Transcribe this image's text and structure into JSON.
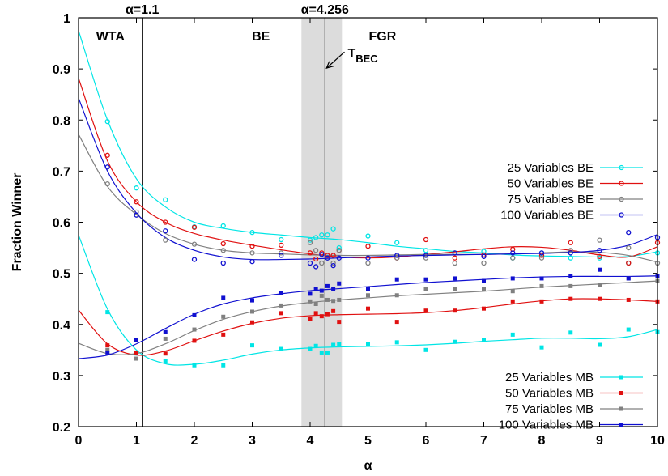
{
  "chart_data": {
    "type": "scatter",
    "xlabel": "α",
    "ylabel": "Fraction Winner",
    "xlim": [
      0,
      10
    ],
    "ylim": [
      0.2,
      1.0
    ],
    "xticks": [
      "0",
      "1",
      "2",
      "3",
      "4",
      "5",
      "6",
      "7",
      "8",
      "9",
      "10"
    ],
    "yticks": [
      "0.2",
      "0.3",
      "0.4",
      "0.5",
      "0.6",
      "0.7",
      "0.8",
      "0.9",
      "1"
    ],
    "grid": false,
    "legend_placement": "right",
    "vlines": [
      {
        "x": 1.1,
        "label": "α=1.1"
      },
      {
        "x": 4.256,
        "label": "α=4.256"
      }
    ],
    "shaded_band": {
      "x": [
        3.85,
        4.55
      ],
      "color": "#dcdcdc"
    },
    "region_labels": [
      {
        "text": "WTA",
        "x": 0.55,
        "y": 0.965
      },
      {
        "text": "BE",
        "x": 3.15,
        "y": 0.965
      },
      {
        "text": "FGR",
        "x": 5.25,
        "y": 0.965
      }
    ],
    "annotation": {
      "text": "T",
      "subscript": "BEC",
      "point_x": 4.256,
      "point_y": 0.9,
      "text_x": 4.65,
      "text_y": 0.93
    },
    "series": [
      {
        "name": "25 Variables BE",
        "color": "#00e5e5",
        "marker": "circle",
        "x": [
          0.5,
          1.0,
          1.5,
          2.0,
          2.5,
          3.0,
          3.5,
          4.0,
          4.1,
          4.2,
          4.3,
          4.4,
          4.5,
          5.0,
          5.5,
          6.0,
          6.5,
          7.0,
          7.5,
          8.0,
          8.5,
          9.0,
          9.5,
          10.0
        ],
        "y": [
          0.797,
          0.667,
          0.644,
          0.591,
          0.593,
          0.58,
          0.566,
          0.565,
          0.57,
          0.575,
          0.575,
          0.587,
          0.55,
          0.573,
          0.56,
          0.545,
          0.54,
          0.543,
          0.53,
          0.54,
          0.53,
          0.53,
          0.52,
          0.54
        ],
        "curve": [
          [
            0,
            0.975
          ],
          [
            0.5,
            0.8
          ],
          [
            1.0,
            0.685
          ],
          [
            1.5,
            0.63
          ],
          [
            2.0,
            0.6
          ],
          [
            2.5,
            0.588
          ],
          [
            3.0,
            0.58
          ],
          [
            3.5,
            0.575
          ],
          [
            4.0,
            0.57
          ],
          [
            4.5,
            0.566
          ],
          [
            5.0,
            0.56
          ],
          [
            5.5,
            0.553
          ],
          [
            6.0,
            0.548
          ],
          [
            6.5,
            0.543
          ],
          [
            7.0,
            0.54
          ],
          [
            7.5,
            0.536
          ],
          [
            8.0,
            0.534
          ],
          [
            8.5,
            0.533
          ],
          [
            9.0,
            0.532
          ],
          [
            9.5,
            0.533
          ],
          [
            10.0,
            0.542
          ]
        ]
      },
      {
        "name": "50 Variables BE",
        "color": "#e01010",
        "marker": "circle",
        "x": [
          0.5,
          1.0,
          1.5,
          2.0,
          2.5,
          3.0,
          3.5,
          4.0,
          4.1,
          4.2,
          4.3,
          4.4,
          4.5,
          5.0,
          5.5,
          6.0,
          6.5,
          7.0,
          7.5,
          8.0,
          8.5,
          9.0,
          9.5,
          10.0
        ],
        "y": [
          0.731,
          0.64,
          0.6,
          0.59,
          0.558,
          0.553,
          0.555,
          0.54,
          0.528,
          0.54,
          0.535,
          0.535,
          0.545,
          0.553,
          0.53,
          0.566,
          0.53,
          0.536,
          0.547,
          0.535,
          0.56,
          0.533,
          0.52,
          0.56
        ],
        "curve": [
          [
            0,
            0.882
          ],
          [
            0.5,
            0.72
          ],
          [
            1.0,
            0.64
          ],
          [
            1.5,
            0.6
          ],
          [
            2.0,
            0.578
          ],
          [
            2.5,
            0.565
          ],
          [
            3.0,
            0.555
          ],
          [
            3.5,
            0.546
          ],
          [
            4.0,
            0.538
          ],
          [
            4.5,
            0.532
          ],
          [
            5.0,
            0.53
          ],
          [
            5.5,
            0.532
          ],
          [
            6.0,
            0.537
          ],
          [
            6.5,
            0.542
          ],
          [
            7.0,
            0.548
          ],
          [
            7.5,
            0.552
          ],
          [
            8.0,
            0.551
          ],
          [
            8.5,
            0.545
          ],
          [
            9.0,
            0.536
          ],
          [
            9.5,
            0.532
          ],
          [
            10.0,
            0.552
          ]
        ]
      },
      {
        "name": "75 Variables BE",
        "color": "#808080",
        "marker": "circle",
        "x": [
          0.5,
          1.0,
          1.5,
          2.0,
          2.5,
          3.0,
          3.5,
          4.0,
          4.1,
          4.2,
          4.3,
          4.4,
          4.5,
          5.0,
          5.5,
          6.0,
          6.5,
          7.0,
          7.5,
          8.0,
          8.5,
          9.0,
          9.5,
          10.0
        ],
        "y": [
          0.675,
          0.62,
          0.565,
          0.557,
          0.545,
          0.54,
          0.54,
          0.56,
          0.545,
          0.52,
          0.53,
          0.52,
          0.545,
          0.52,
          0.53,
          0.53,
          0.52,
          0.52,
          0.53,
          0.53,
          0.545,
          0.565,
          0.55,
          0.52
        ],
        "curve": [
          [
            0,
            0.772
          ],
          [
            0.5,
            0.67
          ],
          [
            1.0,
            0.615
          ],
          [
            1.5,
            0.578
          ],
          [
            2.0,
            0.557
          ],
          [
            2.5,
            0.545
          ],
          [
            3.0,
            0.54
          ],
          [
            3.5,
            0.538
          ],
          [
            4.0,
            0.536
          ],
          [
            4.5,
            0.535
          ],
          [
            5.0,
            0.535
          ],
          [
            5.5,
            0.536
          ],
          [
            6.0,
            0.537
          ],
          [
            6.5,
            0.537
          ],
          [
            7.0,
            0.537
          ],
          [
            7.5,
            0.538
          ],
          [
            8.0,
            0.54
          ],
          [
            8.5,
            0.542
          ],
          [
            9.0,
            0.541
          ],
          [
            9.5,
            0.535
          ],
          [
            10.0,
            0.522
          ]
        ]
      },
      {
        "name": "100 Variables BE",
        "color": "#1010d0",
        "marker": "circle",
        "x": [
          0.5,
          1.0,
          1.5,
          2.0,
          2.5,
          3.0,
          3.5,
          4.0,
          4.1,
          4.2,
          4.3,
          4.4,
          4.5,
          5.0,
          5.5,
          6.0,
          6.5,
          7.0,
          7.5,
          8.0,
          8.5,
          9.0,
          9.5,
          10.0
        ],
        "y": [
          0.708,
          0.614,
          0.583,
          0.527,
          0.52,
          0.523,
          0.535,
          0.52,
          0.513,
          0.537,
          0.53,
          0.515,
          0.53,
          0.53,
          0.535,
          0.535,
          0.54,
          0.533,
          0.54,
          0.54,
          0.54,
          0.545,
          0.58,
          0.57
        ],
        "curve": [
          [
            0,
            0.843
          ],
          [
            0.5,
            0.7
          ],
          [
            1.0,
            0.618
          ],
          [
            1.5,
            0.57
          ],
          [
            2.0,
            0.545
          ],
          [
            2.5,
            0.532
          ],
          [
            3.0,
            0.527
          ],
          [
            3.5,
            0.527
          ],
          [
            4.0,
            0.528
          ],
          [
            4.5,
            0.53
          ],
          [
            5.0,
            0.532
          ],
          [
            5.5,
            0.534
          ],
          [
            6.0,
            0.535
          ],
          [
            6.5,
            0.536
          ],
          [
            7.0,
            0.537
          ],
          [
            7.5,
            0.538
          ],
          [
            8.0,
            0.539
          ],
          [
            8.5,
            0.541
          ],
          [
            9.0,
            0.545
          ],
          [
            9.5,
            0.555
          ],
          [
            10.0,
            0.576
          ]
        ]
      },
      {
        "name": "25 Variables MB",
        "color": "#00e5e5",
        "marker": "square",
        "x": [
          0.5,
          1.0,
          1.5,
          2.0,
          2.5,
          3.0,
          3.5,
          4.0,
          4.1,
          4.2,
          4.3,
          4.4,
          4.5,
          5.0,
          5.5,
          6.0,
          6.5,
          7.0,
          7.5,
          8.0,
          8.5,
          9.0,
          9.5,
          10.0
        ],
        "y": [
          0.424,
          0.343,
          0.328,
          0.32,
          0.32,
          0.359,
          0.352,
          0.352,
          0.358,
          0.345,
          0.345,
          0.36,
          0.362,
          0.362,
          0.365,
          0.35,
          0.366,
          0.37,
          0.38,
          0.355,
          0.384,
          0.36,
          0.39,
          0.385
        ],
        "curve": [
          [
            0,
            0.575
          ],
          [
            0.5,
            0.43
          ],
          [
            1.0,
            0.35
          ],
          [
            1.5,
            0.323
          ],
          [
            2.0,
            0.322
          ],
          [
            2.5,
            0.33
          ],
          [
            3.0,
            0.342
          ],
          [
            3.5,
            0.35
          ],
          [
            4.0,
            0.354
          ],
          [
            4.5,
            0.356
          ],
          [
            5.0,
            0.357
          ],
          [
            5.5,
            0.358
          ],
          [
            6.0,
            0.36
          ],
          [
            6.5,
            0.363
          ],
          [
            7.0,
            0.367
          ],
          [
            7.5,
            0.37
          ],
          [
            8.0,
            0.373
          ],
          [
            8.5,
            0.373
          ],
          [
            9.0,
            0.372
          ],
          [
            9.5,
            0.376
          ],
          [
            10.0,
            0.39
          ]
        ]
      },
      {
        "name": "50 Variables MB",
        "color": "#e01010",
        "marker": "square",
        "x": [
          0.5,
          1.0,
          1.5,
          2.0,
          2.5,
          3.0,
          3.5,
          4.0,
          4.1,
          4.2,
          4.3,
          4.4,
          4.5,
          5.0,
          5.5,
          6.0,
          6.5,
          7.0,
          7.5,
          8.0,
          8.5,
          9.0,
          9.5,
          10.0
        ],
        "y": [
          0.359,
          0.345,
          0.343,
          0.368,
          0.38,
          0.404,
          0.422,
          0.41,
          0.422,
          0.416,
          0.42,
          0.426,
          0.405,
          0.431,
          0.405,
          0.427,
          0.427,
          0.431,
          0.445,
          0.445,
          0.45,
          0.45,
          0.448,
          0.445
        ],
        "curve": [
          [
            0,
            0.428
          ],
          [
            0.5,
            0.362
          ],
          [
            1.0,
            0.34
          ],
          [
            1.5,
            0.348
          ],
          [
            2.0,
            0.368
          ],
          [
            2.5,
            0.387
          ],
          [
            3.0,
            0.402
          ],
          [
            3.5,
            0.412
          ],
          [
            4.0,
            0.417
          ],
          [
            4.5,
            0.419
          ],
          [
            5.0,
            0.42
          ],
          [
            5.5,
            0.421
          ],
          [
            6.0,
            0.423
          ],
          [
            6.5,
            0.427
          ],
          [
            7.0,
            0.433
          ],
          [
            7.5,
            0.44
          ],
          [
            8.0,
            0.446
          ],
          [
            8.5,
            0.45
          ],
          [
            9.0,
            0.45
          ],
          [
            9.5,
            0.448
          ],
          [
            10.0,
            0.445
          ]
        ]
      },
      {
        "name": "75 Variables MB",
        "color": "#808080",
        "marker": "square",
        "x": [
          0.5,
          1.0,
          1.5,
          2.0,
          2.5,
          3.0,
          3.5,
          4.0,
          4.1,
          4.2,
          4.3,
          4.4,
          4.5,
          5.0,
          5.5,
          6.0,
          6.5,
          7.0,
          7.5,
          8.0,
          8.5,
          9.0,
          9.5,
          10.0
        ],
        "y": [
          0.35,
          0.333,
          0.372,
          0.39,
          0.415,
          0.425,
          0.437,
          0.445,
          0.44,
          0.456,
          0.448,
          0.446,
          0.448,
          0.457,
          0.457,
          0.47,
          0.47,
          0.47,
          0.465,
          0.475,
          0.475,
          0.477,
          0.49,
          0.485
        ],
        "curve": [
          [
            0,
            0.363
          ],
          [
            0.5,
            0.343
          ],
          [
            1.0,
            0.343
          ],
          [
            1.5,
            0.362
          ],
          [
            2.0,
            0.388
          ],
          [
            2.5,
            0.41
          ],
          [
            3.0,
            0.425
          ],
          [
            3.5,
            0.436
          ],
          [
            4.0,
            0.443
          ],
          [
            4.5,
            0.448
          ],
          [
            5.0,
            0.452
          ],
          [
            5.5,
            0.456
          ],
          [
            6.0,
            0.459
          ],
          [
            6.5,
            0.462
          ],
          [
            7.0,
            0.465
          ],
          [
            7.5,
            0.469
          ],
          [
            8.0,
            0.473
          ],
          [
            8.5,
            0.476
          ],
          [
            9.0,
            0.479
          ],
          [
            9.5,
            0.482
          ],
          [
            10.0,
            0.485
          ]
        ]
      },
      {
        "name": "100 Variables MB",
        "color": "#1010d0",
        "marker": "square",
        "x": [
          0.5,
          1.0,
          1.5,
          2.0,
          2.5,
          3.0,
          3.5,
          4.0,
          4.1,
          4.2,
          4.3,
          4.4,
          4.5,
          5.0,
          5.5,
          6.0,
          6.5,
          7.0,
          7.5,
          8.0,
          8.5,
          9.0,
          9.5,
          10.0
        ],
        "y": [
          0.345,
          0.37,
          0.385,
          0.418,
          0.452,
          0.447,
          0.462,
          0.46,
          0.47,
          0.466,
          0.475,
          0.47,
          0.48,
          0.47,
          0.488,
          0.488,
          0.49,
          0.485,
          0.49,
          0.49,
          0.495,
          0.507,
          0.49,
          0.495
        ],
        "curve": [
          [
            0,
            0.333
          ],
          [
            0.5,
            0.34
          ],
          [
            1.0,
            0.362
          ],
          [
            1.5,
            0.392
          ],
          [
            2.0,
            0.42
          ],
          [
            2.5,
            0.44
          ],
          [
            3.0,
            0.452
          ],
          [
            3.5,
            0.46
          ],
          [
            4.0,
            0.466
          ],
          [
            4.5,
            0.47
          ],
          [
            5.0,
            0.474
          ],
          [
            5.5,
            0.478
          ],
          [
            6.0,
            0.482
          ],
          [
            6.5,
            0.485
          ],
          [
            7.0,
            0.488
          ],
          [
            7.5,
            0.491
          ],
          [
            8.0,
            0.493
          ],
          [
            8.5,
            0.494
          ],
          [
            9.0,
            0.494
          ],
          [
            9.5,
            0.494
          ],
          [
            10.0,
            0.495
          ]
        ]
      }
    ]
  }
}
